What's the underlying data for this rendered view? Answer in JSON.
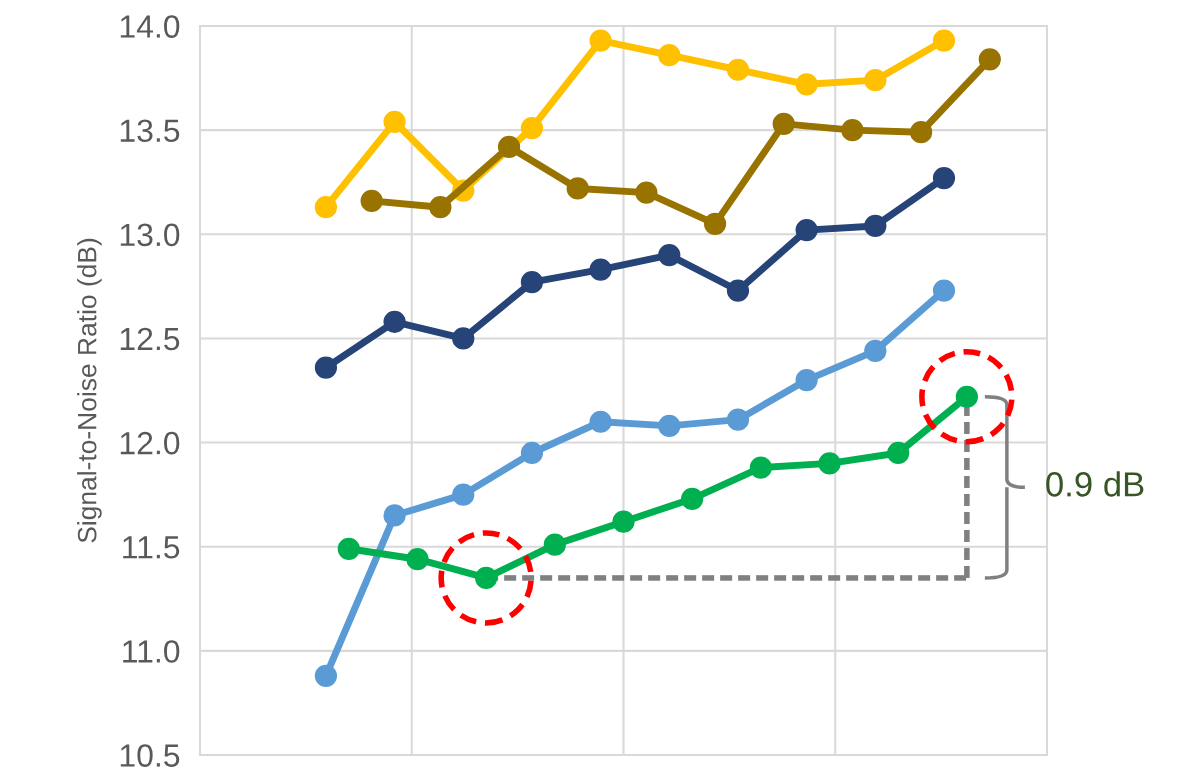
{
  "chart_data": {
    "type": "line",
    "ylabel": "Signal-to-Noise Ratio (dB)",
    "categories": [
      null,
      null,
      null,
      null,
      null,
      null,
      null,
      null,
      null,
      null,
      null,
      null,
      null,
      null,
      null,
      null,
      null,
      null,
      null,
      null,
      null,
      null,
      null,
      null,
      null,
      null,
      null,
      null,
      null,
      null,
      null,
      null,
      null,
      null,
      null,
      null,
      null
    ],
    "ylim": [
      10.5,
      14.0
    ],
    "yticks": [
      {
        "value": 10.5,
        "label": "10.5"
      },
      {
        "value": 11.0,
        "label": "11.0"
      },
      {
        "value": 11.5,
        "label": "11.5"
      },
      {
        "value": 12.0,
        "label": "12.0"
      },
      {
        "value": 12.5,
        "label": "12.5"
      },
      {
        "value": 13.0,
        "label": "13.0"
      },
      {
        "value": 13.5,
        "label": "13.5"
      },
      {
        "value": 14.0,
        "label": "14.0"
      }
    ],
    "grid": true,
    "marker": "circle",
    "line_style": "solid",
    "series": [
      {
        "color": "#ffc000",
        "values": [
          null,
          null,
          null,
          null,
          null,
          13.13,
          null,
          null,
          13.54,
          null,
          null,
          13.21,
          null,
          null,
          13.51,
          null,
          null,
          13.93,
          null,
          null,
          13.86,
          null,
          null,
          13.79,
          null,
          null,
          13.72,
          null,
          null,
          13.74,
          null,
          null,
          13.93,
          null,
          null,
          null,
          null
        ]
      },
      {
        "color": "#997300",
        "values": [
          null,
          null,
          null,
          null,
          null,
          null,
          null,
          13.16,
          null,
          null,
          13.13,
          null,
          null,
          13.42,
          null,
          null,
          13.22,
          null,
          null,
          13.2,
          null,
          null,
          13.05,
          null,
          null,
          13.53,
          null,
          null,
          13.5,
          null,
          null,
          13.49,
          null,
          null,
          13.84,
          null,
          null
        ]
      },
      {
        "color": "#264478",
        "values": [
          null,
          null,
          null,
          null,
          null,
          12.36,
          null,
          null,
          12.58,
          null,
          null,
          12.5,
          null,
          null,
          12.77,
          null,
          null,
          12.83,
          null,
          null,
          12.9,
          null,
          null,
          12.73,
          null,
          null,
          13.02,
          null,
          null,
          13.04,
          null,
          null,
          13.27,
          null,
          null,
          null,
          null
        ]
      },
      {
        "color": "#5b9bd5",
        "values": [
          null,
          null,
          null,
          null,
          null,
          10.88,
          null,
          null,
          11.65,
          null,
          null,
          11.75,
          null,
          null,
          11.95,
          null,
          null,
          12.1,
          null,
          null,
          12.08,
          null,
          null,
          12.11,
          null,
          null,
          12.3,
          null,
          null,
          12.44,
          null,
          null,
          12.73,
          null,
          null,
          null,
          null
        ]
      },
      {
        "color": "#00b050",
        "values": [
          null,
          null,
          null,
          null,
          null,
          null,
          11.49,
          null,
          null,
          11.44,
          null,
          null,
          11.35,
          null,
          null,
          11.51,
          null,
          null,
          11.62,
          null,
          null,
          11.73,
          null,
          null,
          11.88,
          null,
          null,
          11.9,
          null,
          null,
          11.95,
          null,
          null,
          12.22,
          null,
          null,
          null
        ]
      }
    ],
    "annotations": [
      "0.9 dB"
    ]
  }
}
